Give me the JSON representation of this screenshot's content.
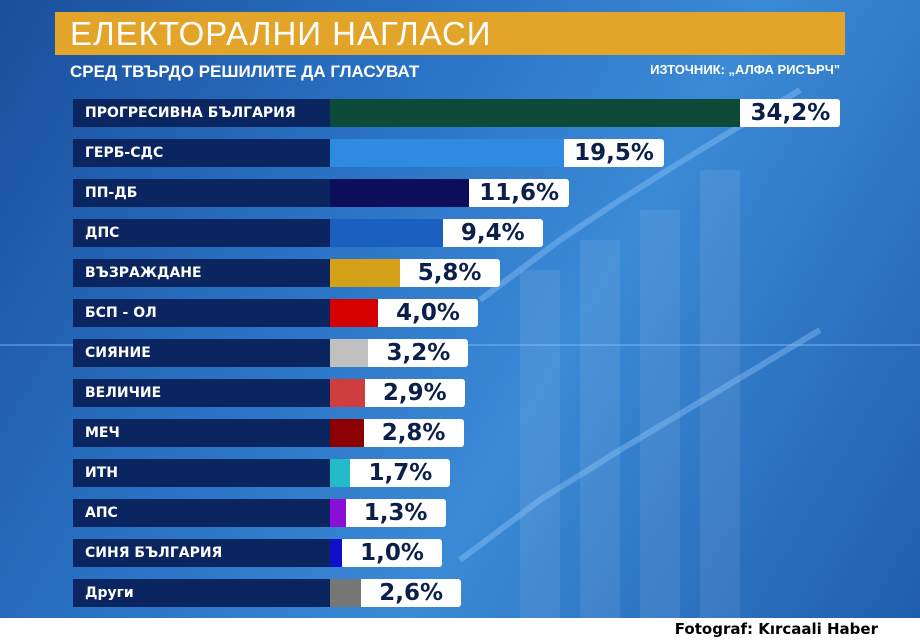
{
  "chart_data": {
    "type": "bar",
    "orientation": "horizontal",
    "title": "ЕЛЕКТОРАЛНИ НАГЛАСИ",
    "subtitle": "СРЕД ТВЪРДО РЕШИЛИТЕ ДА ГЛАСУВАТ",
    "source": "ИЗТОЧНИК: „АЛФА РИСЪРЧ\"",
    "unit": "%",
    "categories": [
      "ПРОГРЕСИВНА БЪЛГАРИЯ",
      "ГЕРБ-СДС",
      "ПП-ДБ",
      "ДПС",
      "ВЪЗРАЖДАНЕ",
      "БСП - ОЛ",
      "СИЯНИЕ",
      "ВЕЛИЧИЕ",
      "МЕЧ",
      "ИТН",
      "АПС",
      "СИНЯ БЪЛГАРИЯ",
      "Други"
    ],
    "values": [
      34.2,
      19.5,
      11.6,
      9.4,
      5.8,
      4.0,
      3.2,
      2.9,
      2.8,
      1.7,
      1.3,
      1.0,
      2.6
    ],
    "labels": [
      "34,2%",
      "19,5%",
      "11,6%",
      "9,4%",
      "5,8%",
      "4,0%",
      "3,2%",
      "2,9%",
      "2,8%",
      "1,7%",
      "1,3%",
      "1,0%",
      "2,6%"
    ],
    "colors": [
      "#0e4a3a",
      "#2f8be0",
      "#0c0e5a",
      "#1b5fc0",
      "#d4a017",
      "#d40000",
      "#c0c0c0",
      "#cf3e3e",
      "#8b0000",
      "#22bcc8",
      "#8a10d8",
      "#1010c8",
      "#777777"
    ]
  },
  "credit": "Fotograf: Kırcaali Haber"
}
